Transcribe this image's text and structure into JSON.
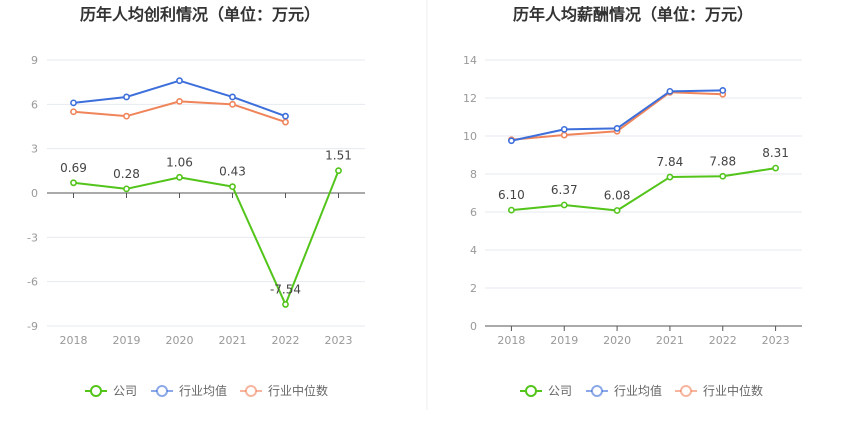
{
  "chart_data": [
    {
      "type": "line",
      "title": "历年人均创利情况（单位：万元）",
      "categories": [
        "2018",
        "2019",
        "2020",
        "2021",
        "2022",
        "2023"
      ],
      "ylim": [
        -9,
        9
      ],
      "yticks": [
        "9",
        "6",
        "3",
        "0",
        "-3",
        "-6",
        "-9"
      ],
      "grid": true,
      "legend_position": "bottom",
      "series": [
        {
          "name": "公司",
          "color": "#52c41a",
          "values": [
            0.69,
            0.28,
            1.06,
            0.43,
            -7.54,
            1.51
          ],
          "labels": [
            "0.69",
            "0.28",
            "1.06",
            "0.43",
            "-7.54",
            "1.51"
          ]
        },
        {
          "name": "行业均值",
          "color": "#3d6fdb",
          "values": [
            6.1,
            6.5,
            7.6,
            6.5,
            5.2,
            null
          ]
        },
        {
          "name": "行业中位数",
          "color": "#f0845a",
          "values": [
            5.5,
            5.2,
            6.2,
            6.0,
            4.8,
            null
          ]
        }
      ]
    },
    {
      "type": "line",
      "title": "历年人均薪酬情况（单位：万元）",
      "categories": [
        "2018",
        "2019",
        "2020",
        "2021",
        "2022",
        "2023"
      ],
      "ylim": [
        0,
        14
      ],
      "yticks": [
        "14",
        "12",
        "10",
        "8",
        "6",
        "4",
        "2",
        "0"
      ],
      "grid": true,
      "legend_position": "bottom",
      "series": [
        {
          "name": "公司",
          "color": "#52c41a",
          "values": [
            6.1,
            6.37,
            6.08,
            7.84,
            7.88,
            8.31
          ],
          "labels": [
            "6.10",
            "6.37",
            "6.08",
            "7.84",
            "7.88",
            "8.31"
          ]
        },
        {
          "name": "行业均值",
          "color": "#3d6fdb",
          "values": [
            9.75,
            10.35,
            10.4,
            12.35,
            12.4,
            null
          ]
        },
        {
          "name": "行业中位数",
          "color": "#f0845a",
          "values": [
            9.8,
            10.05,
            10.25,
            12.3,
            12.2,
            null
          ]
        }
      ]
    }
  ]
}
